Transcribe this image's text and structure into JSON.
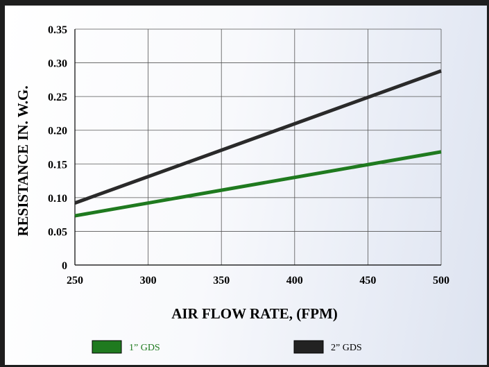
{
  "chart_data": {
    "type": "line",
    "title": "",
    "xlabel": "AIR FLOW RATE, (FPM)",
    "ylabel": "RESISTANCE IN. W.G.",
    "xlim": [
      250,
      500
    ],
    "ylim": [
      0,
      0.35
    ],
    "x_ticks": [
      250,
      300,
      350,
      400,
      450,
      500
    ],
    "x_tick_labels": [
      "250",
      "300",
      "350",
      "400",
      "450",
      "500"
    ],
    "y_ticks": [
      0,
      0.05,
      0.1,
      0.15,
      0.2,
      0.25,
      0.3,
      0.35
    ],
    "y_tick_labels": [
      "0",
      "0.05",
      "0.10",
      "0.15",
      "0.20",
      "0.25",
      "0.30",
      "0.35"
    ],
    "grid": true,
    "legend_position": "bottom",
    "series": [
      {
        "name": "1” GDS",
        "color": "#1f7a1f",
        "x": [
          250,
          500
        ],
        "y": [
          0.073,
          0.168
        ]
      },
      {
        "name": "2” GDS",
        "color": "#2a2a2a",
        "x": [
          250,
          500
        ],
        "y": [
          0.092,
          0.288
        ]
      }
    ]
  }
}
